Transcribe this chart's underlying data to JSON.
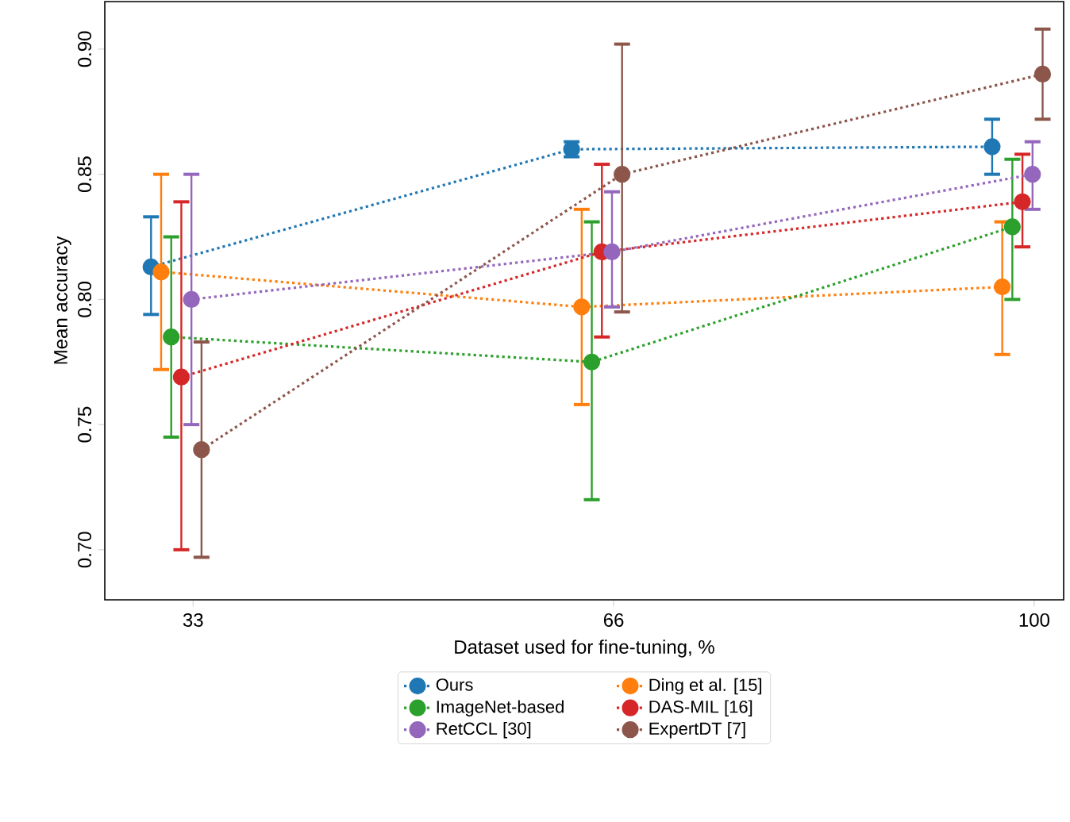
{
  "chart_data": {
    "type": "line",
    "xlabel": "Dataset used for fine-tuning, %",
    "ylabel": "Mean accuracy",
    "categories": [
      "33",
      "66",
      "100"
    ],
    "series": [
      {
        "name": "Ours",
        "color": "#1f77b4",
        "values": [
          0.813,
          0.86,
          0.861
        ],
        "errors": [
          [
            0.794,
            0.833
          ],
          [
            0.857,
            0.863
          ],
          [
            0.85,
            0.872
          ]
        ]
      },
      {
        "name": "Ding et al. [15]",
        "color": "#ff7f0e",
        "values": [
          0.811,
          0.797,
          0.805
        ],
        "errors": [
          [
            0.772,
            0.85
          ],
          [
            0.758,
            0.836
          ],
          [
            0.778,
            0.831
          ]
        ]
      },
      {
        "name": "ImageNet-based",
        "color": "#2ca02c",
        "values": [
          0.785,
          0.775,
          0.829
        ],
        "errors": [
          [
            0.745,
            0.825
          ],
          [
            0.72,
            0.831
          ],
          [
            0.8,
            0.856
          ]
        ]
      },
      {
        "name": "DAS-MIL [16]",
        "color": "#d62728",
        "values": [
          0.769,
          0.819,
          0.839
        ],
        "errors": [
          [
            0.7,
            0.839
          ],
          [
            0.785,
            0.854
          ],
          [
            0.821,
            0.858
          ]
        ]
      },
      {
        "name": "RetCCL [30]",
        "color": "#9467bd",
        "values": [
          0.8,
          0.819,
          0.85
        ],
        "errors": [
          [
            0.75,
            0.85
          ],
          [
            0.797,
            0.843
          ],
          [
            0.836,
            0.863
          ]
        ]
      },
      {
        "name": "ExpertDT [7]",
        "color": "#8c564b",
        "values": [
          0.74,
          0.85,
          0.89
        ],
        "errors": [
          [
            0.697,
            0.783
          ],
          [
            0.795,
            0.902
          ],
          [
            0.872,
            0.908
          ]
        ]
      }
    ],
    "ylim": [
      0.68,
      0.919
    ],
    "yticks": [
      {
        "value": 0.7,
        "label": "0.70"
      },
      {
        "value": 0.75,
        "label": "0.75"
      },
      {
        "value": 0.8,
        "label": "0.80"
      },
      {
        "value": 0.85,
        "label": "0.85"
      },
      {
        "value": 0.9,
        "label": "0.90"
      }
    ],
    "legend": "bottom",
    "marker": "circle",
    "line_style": "dotted",
    "grid": false
  }
}
